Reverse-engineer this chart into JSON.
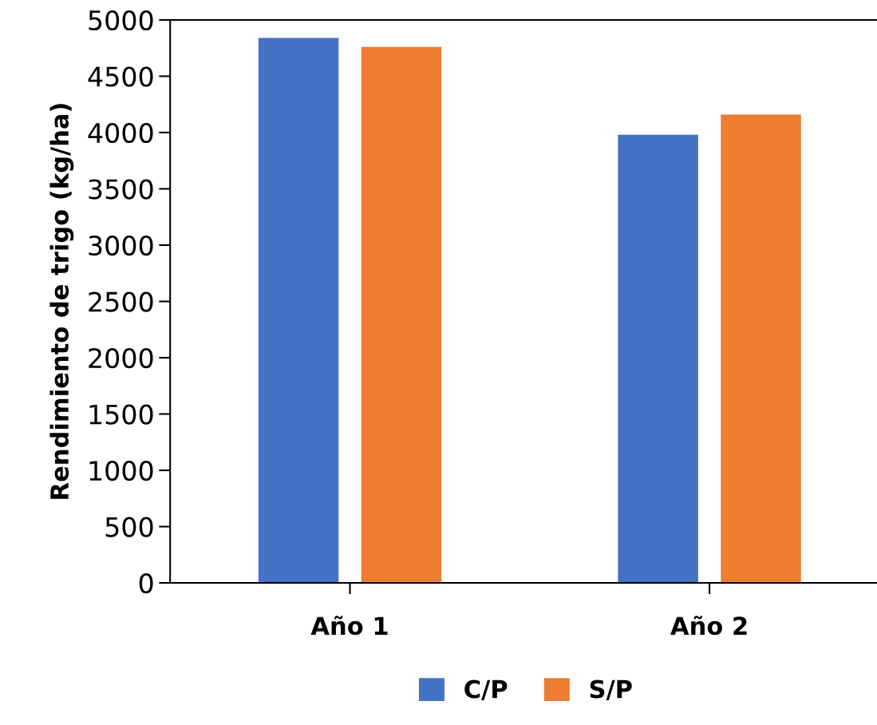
{
  "chart_data": {
    "type": "bar",
    "ylabel": "Rendimiento de trigo (kg/ha)",
    "categories": [
      "Año 1",
      "Año 2"
    ],
    "series": [
      {
        "name": "C/P",
        "color": "#4472c4",
        "values": [
          4840,
          3980
        ]
      },
      {
        "name": "S/P",
        "color": "#ed7d31",
        "values": [
          4760,
          4160
        ]
      }
    ],
    "ylim": [
      0,
      5000
    ],
    "yticks": [
      0,
      500,
      1000,
      1500,
      2000,
      2500,
      3000,
      3500,
      4000,
      4500,
      5000
    ],
    "grid": false,
    "legend": "bottom"
  }
}
